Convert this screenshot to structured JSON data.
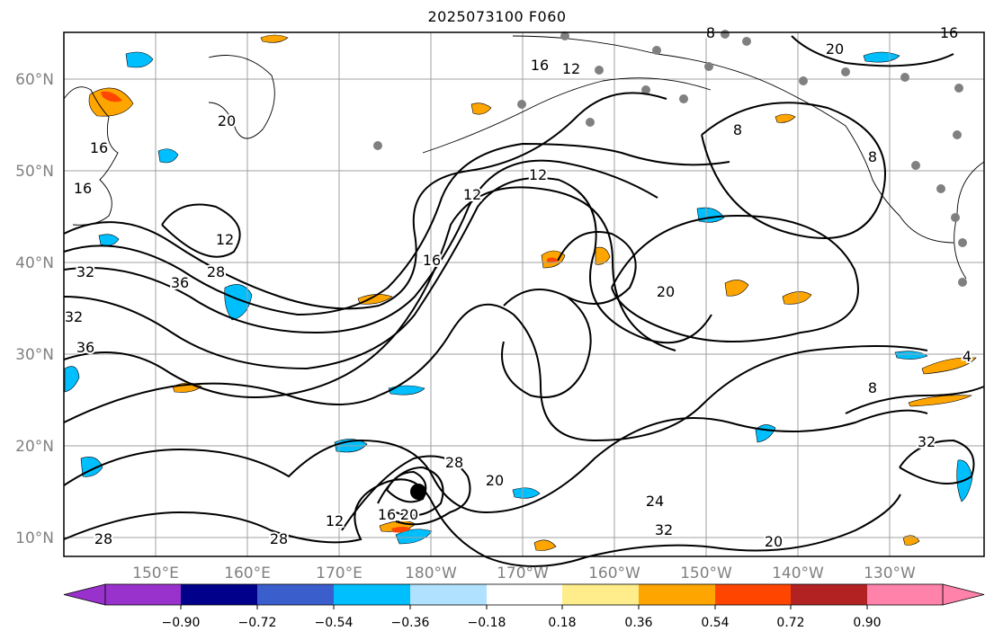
{
  "title": "2025073100 F060",
  "map": {
    "lat_ticks": [
      "60°N",
      "50°N",
      "40°N",
      "30°N",
      "20°N",
      "10°N"
    ],
    "lon_ticks": [
      "150°E",
      "160°E",
      "170°E",
      "180°W",
      "170°W",
      "160°W",
      "150°W",
      "140°W",
      "130°W"
    ],
    "grid": true,
    "storm_marker": "black-dot"
  },
  "contour_labels": [
    "16",
    "12",
    "8",
    "20",
    "16",
    "16",
    "16",
    "12",
    "12",
    "12",
    "8",
    "8",
    "20",
    "28",
    "32",
    "36",
    "32",
    "36",
    "20",
    "16",
    "20",
    "4",
    "8",
    "28",
    "12",
    "16",
    "28",
    "24",
    "32",
    "32",
    "20",
    "28",
    "20"
  ],
  "colorbar": {
    "colors": [
      "#9932cc",
      "#00008b",
      "#3a5fcd",
      "#00bfff",
      "#b0e2ff",
      "#ffffff",
      "#ffec8b",
      "#ffa500",
      "#ff4500",
      "#b22222",
      "#ff82ab"
    ],
    "tick_labels": [
      "−0.90",
      "−0.72",
      "−0.54",
      "−0.36",
      "−0.18",
      "0.18",
      "0.36",
      "0.54",
      "0.72",
      "0.90"
    ],
    "extend": "both"
  }
}
